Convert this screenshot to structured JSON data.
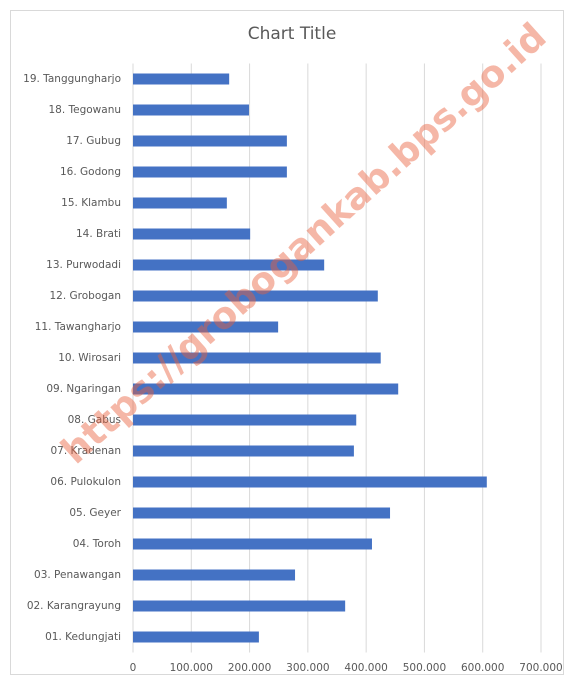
{
  "chart_data": {
    "type": "bar",
    "orientation": "horizontal",
    "title": "Chart Title",
    "watermark": "https://grobogankab.bps.go.id",
    "categories": [
      "01. Kedungjati",
      "02. Karangrayung",
      "03. Penawangan",
      "04. Toroh",
      "05. Geyer",
      "06. Pulokulon",
      "07. Kradenan",
      "08. Gabus",
      "09. Ngaringan",
      "10. Wirosari",
      "11. Tawangharjo",
      "12. Grobogan",
      "13. Purwodadi",
      "14. Brati",
      "15. Klambu",
      "16. Godong",
      "17. Gubug",
      "18. Tegowanu",
      "19. Tanggungharjo"
    ],
    "values": [
      216000,
      364000,
      278000,
      410000,
      441000,
      607000,
      379000,
      383000,
      455000,
      425000,
      249000,
      420000,
      328000,
      201000,
      161000,
      264000,
      264000,
      199000,
      165000
    ],
    "color": "#4472c4",
    "xlim": [
      0,
      700000
    ],
    "xticks": [
      0,
      {
        "value": 100000,
        "label": "100.000"
      },
      {
        "value": 200000,
        "label": "200.000"
      },
      {
        "value": 300000,
        "label": "300.000"
      },
      {
        "value": 400000,
        "label": "400.000"
      },
      {
        "value": 500000,
        "label": "500.000"
      },
      {
        "value": 600000,
        "label": "600.000"
      },
      {
        "value": 700000,
        "label": "700.000"
      }
    ],
    "grid": true
  }
}
